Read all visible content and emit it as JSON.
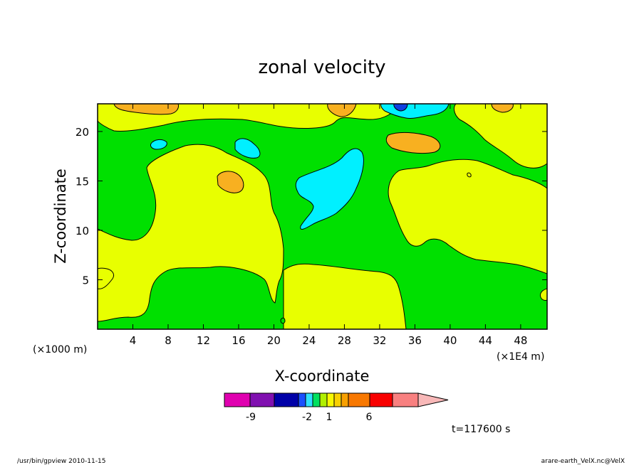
{
  "chart_data": {
    "type": "heatmap",
    "title": "zonal velocity",
    "xlabel": "X-coordinate",
    "ylabel": "Z-coordinate",
    "x_unit": "(×1E4 m)",
    "y_unit": "(×1000 m)",
    "xlim": [
      0,
      51
    ],
    "ylim": [
      0,
      22.8
    ],
    "x_ticks": [
      4,
      8,
      12,
      16,
      20,
      24,
      28,
      32,
      36,
      40,
      44,
      48
    ],
    "y_ticks": [
      5,
      10,
      15,
      20
    ],
    "colorbar": {
      "colors": [
        "#e000b0",
        "#8010b0",
        "#0000a8",
        "#1a50ff",
        "#30e0ff",
        "#00e060",
        "#b0f000",
        "#f8f800",
        "#f8d000",
        "#f8a000",
        "#f87800",
        "#f80000",
        "#f88080",
        "#f8b8b8"
      ],
      "tick_labels": [
        "-9",
        "-2",
        "1",
        "6"
      ],
      "extend": "max"
    },
    "regions": [
      {
        "level": "green",
        "color": "#00e000",
        "range": "0 to 1"
      },
      {
        "level": "yellow",
        "color": "#e8ff00",
        "range": "1 to 2"
      },
      {
        "level": "orange",
        "color": "#f8b020",
        "range": "2 to 3"
      },
      {
        "level": "cyan",
        "color": "#00f0ff",
        "range": "-1 to 0"
      },
      {
        "level": "blue",
        "color": "#1040e0",
        "range": "-2 to -1"
      }
    ],
    "time_label": "t=117600 s"
  },
  "footer": {
    "left": "/usr/bin/gpview  2010-11-15",
    "right": "arare-earth_VelX.nc@VelX"
  }
}
